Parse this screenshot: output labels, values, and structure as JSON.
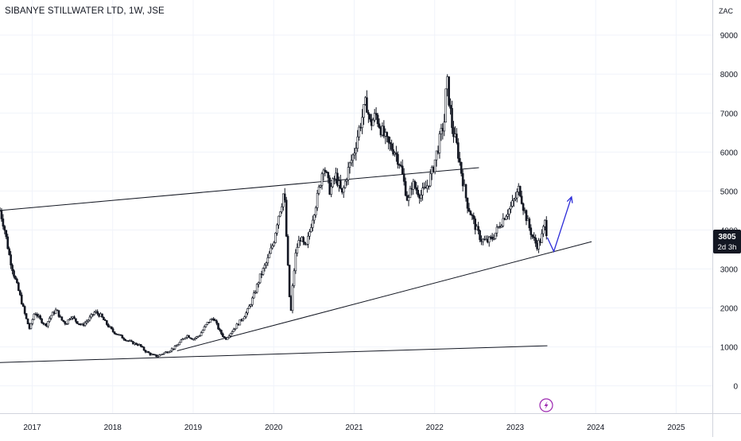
{
  "title": {
    "symbol": "SIBANYE STILLWATER LTD",
    "interval": "1W",
    "exchange": "JSE",
    "text": "SIBANYE STILLWATER LTD, 1W, JSE"
  },
  "price_badge": {
    "price": "3805",
    "countdown": "2d 3h"
  },
  "chart_data": {
    "type": "candlestick",
    "currency": "ZAC",
    "xlabel": "",
    "ylabel": "",
    "x_ticks": [
      "2017",
      "2018",
      "2019",
      "2020",
      "2021",
      "2022",
      "2023",
      "2024",
      "2025"
    ],
    "y_ticks": [
      0,
      1000,
      2000,
      3000,
      4000,
      5000,
      6000,
      7000,
      8000,
      9000
    ],
    "ylim": [
      -700,
      9900
    ],
    "xlim": [
      2016.6,
      2025.45
    ],
    "grid": true,
    "last_price": 3805,
    "price_path": [
      [
        2016.6,
        4500
      ],
      [
        2016.65,
        4100
      ],
      [
        2016.72,
        3300
      ],
      [
        2016.78,
        2800
      ],
      [
        2016.85,
        2300
      ],
      [
        2016.92,
        1750
      ],
      [
        2016.97,
        1450
      ],
      [
        2017.03,
        1900
      ],
      [
        2017.1,
        1700
      ],
      [
        2017.17,
        1550
      ],
      [
        2017.23,
        1800
      ],
      [
        2017.3,
        1950
      ],
      [
        2017.36,
        1700
      ],
      [
        2017.42,
        1600
      ],
      [
        2017.48,
        1800
      ],
      [
        2017.55,
        1650
      ],
      [
        2017.62,
        1550
      ],
      [
        2017.7,
        1700
      ],
      [
        2017.78,
        1900
      ],
      [
        2017.85,
        1800
      ],
      [
        2017.92,
        1600
      ],
      [
        2018.0,
        1400
      ],
      [
        2018.08,
        1300
      ],
      [
        2018.15,
        1200
      ],
      [
        2018.25,
        1100
      ],
      [
        2018.33,
        1050
      ],
      [
        2018.4,
        900
      ],
      [
        2018.48,
        800
      ],
      [
        2018.55,
        760
      ],
      [
        2018.62,
        830
      ],
      [
        2018.7,
        900
      ],
      [
        2018.78,
        1000
      ],
      [
        2018.85,
        1150
      ],
      [
        2018.92,
        1300
      ],
      [
        2019.0,
        1200
      ],
      [
        2019.08,
        1300
      ],
      [
        2019.17,
        1600
      ],
      [
        2019.25,
        1750
      ],
      [
        2019.33,
        1400
      ],
      [
        2019.4,
        1200
      ],
      [
        2019.5,
        1450
      ],
      [
        2019.58,
        1650
      ],
      [
        2019.67,
        1900
      ],
      [
        2019.75,
        2300
      ],
      [
        2019.83,
        2800
      ],
      [
        2019.92,
        3200
      ],
      [
        2020.0,
        3700
      ],
      [
        2020.05,
        4300
      ],
      [
        2020.1,
        4700
      ],
      [
        2020.13,
        5050
      ],
      [
        2020.17,
        3300
      ],
      [
        2020.21,
        1750
      ],
      [
        2020.24,
        2700
      ],
      [
        2020.28,
        3500
      ],
      [
        2020.33,
        3800
      ],
      [
        2020.4,
        3500
      ],
      [
        2020.48,
        4300
      ],
      [
        2020.55,
        4900
      ],
      [
        2020.62,
        5700
      ],
      [
        2020.7,
        5000
      ],
      [
        2020.77,
        5400
      ],
      [
        2020.85,
        4900
      ],
      [
        2020.92,
        5500
      ],
      [
        2021.0,
        6000
      ],
      [
        2021.05,
        6500
      ],
      [
        2021.1,
        6900
      ],
      [
        2021.15,
        7300
      ],
      [
        2021.2,
        6700
      ],
      [
        2021.27,
        6950
      ],
      [
        2021.35,
        6500
      ],
      [
        2021.42,
        6200
      ],
      [
        2021.5,
        6050
      ],
      [
        2021.57,
        5700
      ],
      [
        2021.62,
        5200
      ],
      [
        2021.67,
        4700
      ],
      [
        2021.72,
        5200
      ],
      [
        2021.77,
        5050
      ],
      [
        2021.83,
        4900
      ],
      [
        2021.9,
        5100
      ],
      [
        2021.97,
        5500
      ],
      [
        2022.05,
        6200
      ],
      [
        2022.12,
        6800
      ],
      [
        2022.15,
        7900
      ],
      [
        2022.18,
        7300
      ],
      [
        2022.22,
        6600
      ],
      [
        2022.28,
        6100
      ],
      [
        2022.33,
        5500
      ],
      [
        2022.4,
        4700
      ],
      [
        2022.47,
        4300
      ],
      [
        2022.52,
        4000
      ],
      [
        2022.58,
        3750
      ],
      [
        2022.65,
        3700
      ],
      [
        2022.72,
        3800
      ],
      [
        2022.8,
        4100
      ],
      [
        2022.88,
        4400
      ],
      [
        2022.95,
        4600
      ],
      [
        2023.02,
        4900
      ],
      [
        2023.05,
        5100
      ],
      [
        2023.1,
        4600
      ],
      [
        2023.17,
        4100
      ],
      [
        2023.22,
        3800
      ],
      [
        2023.27,
        3600
      ],
      [
        2023.32,
        3750
      ],
      [
        2023.37,
        4200
      ],
      [
        2023.4,
        3805
      ]
    ],
    "trendlines": [
      {
        "name": "upper-channel",
        "points": [
          [
            2016.6,
            4500
          ],
          [
            2022.55,
            5600
          ]
        ]
      },
      {
        "name": "rising-support",
        "points": [
          [
            2018.8,
            900
          ],
          [
            2023.95,
            3700
          ]
        ]
      },
      {
        "name": "long-base",
        "points": [
          [
            2016.6,
            600
          ],
          [
            2023.4,
            1030
          ]
        ]
      }
    ],
    "projection": {
      "points": [
        [
          2023.4,
          3805
        ],
        [
          2023.48,
          3450
        ],
        [
          2023.7,
          4850
        ]
      ],
      "color": "#2c2cd8"
    },
    "colors": {
      "candles": "#131722",
      "grid": "#f0f3fa",
      "axis_text": "#131722",
      "lines": "#131722",
      "badge_bg": "#131722",
      "badge_text": "#ffffff",
      "flash_icon": "#9c27b0"
    },
    "icons": [
      "lightning-icon"
    ]
  }
}
